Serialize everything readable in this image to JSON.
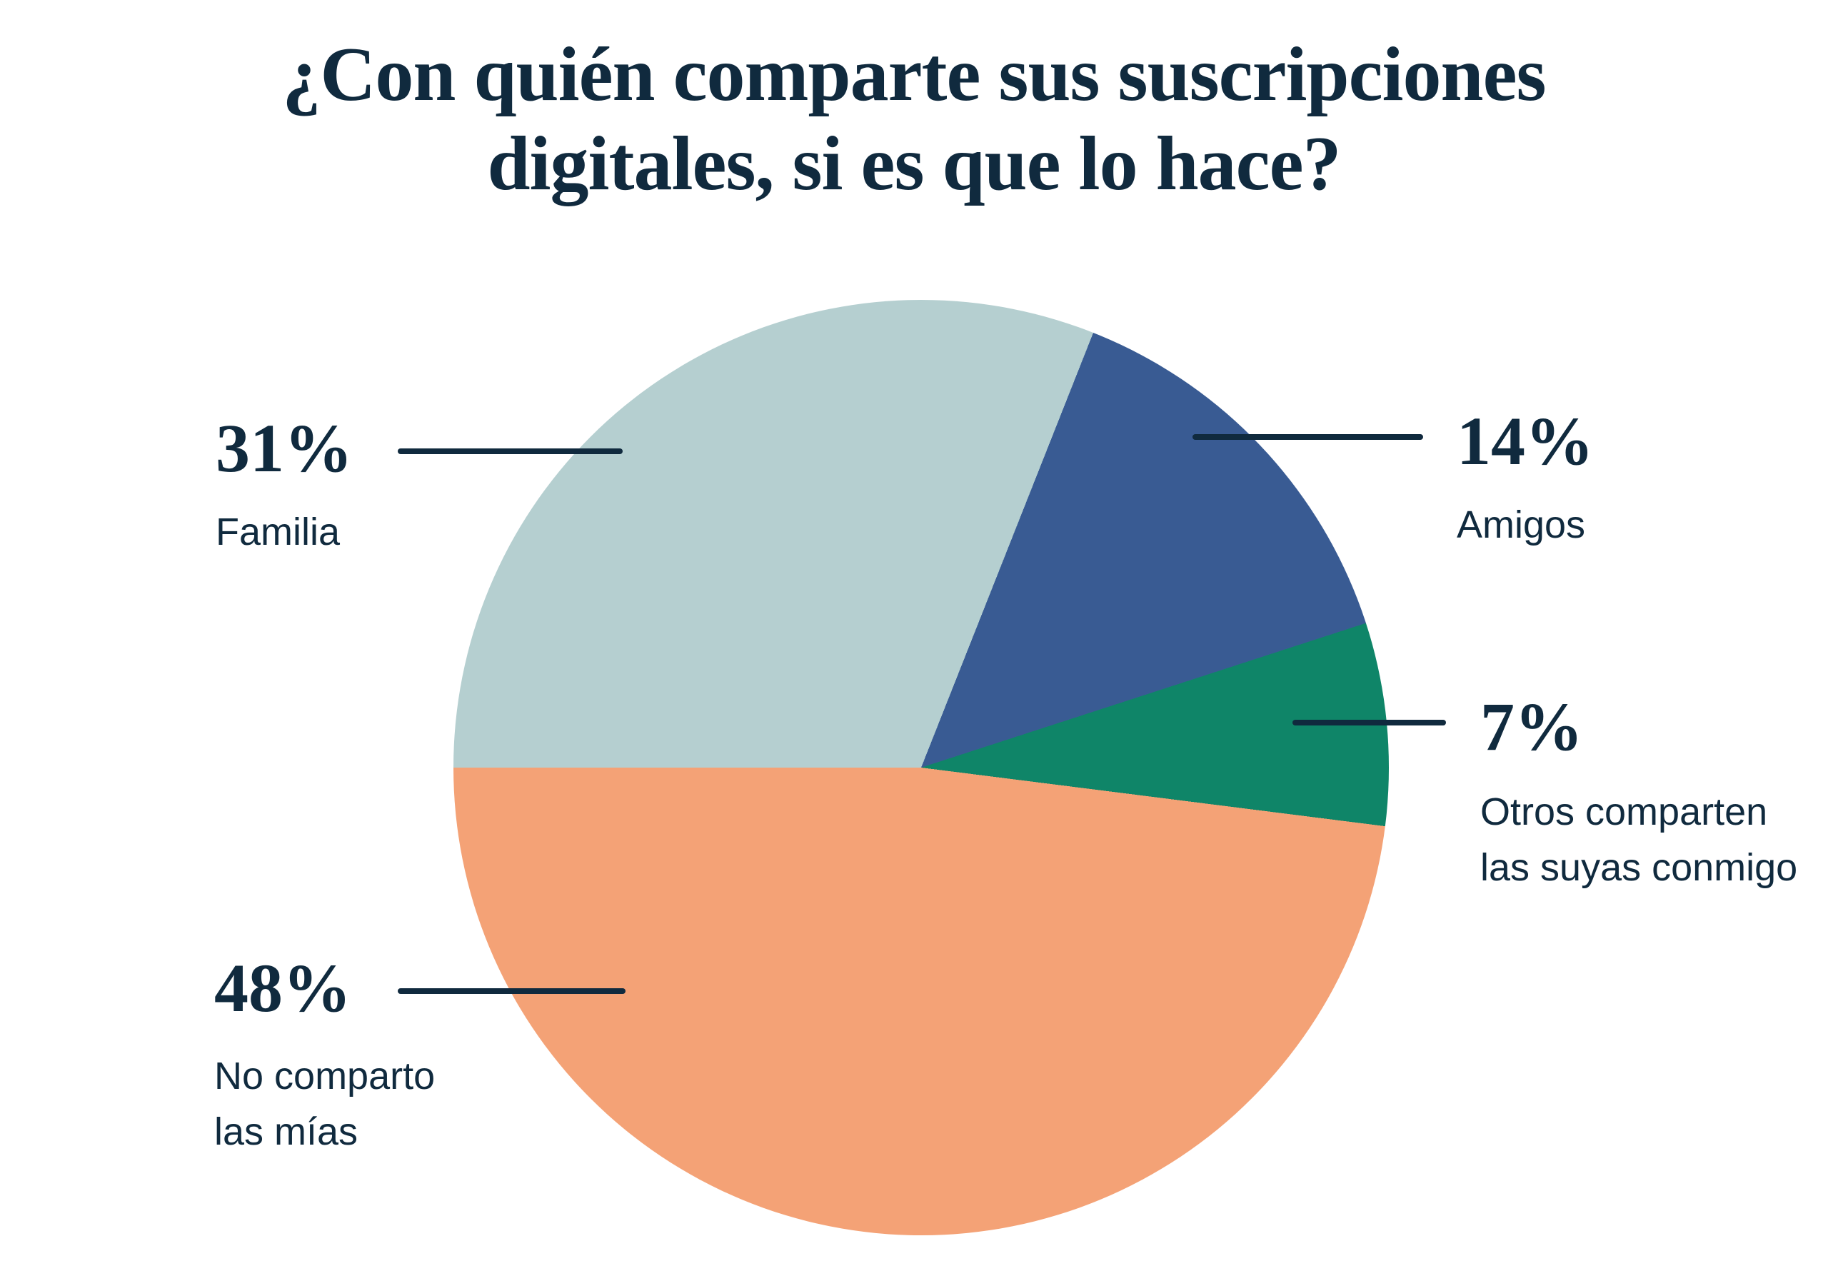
{
  "title": {
    "text": "¿Con quién comparte sus suscripciones digitales, si es que lo hace?",
    "display": "¿Con quién comparte sus suscripciones\ndigitales, si es que lo hace?"
  },
  "colors": {
    "text": "#102a3e",
    "callout_line": "#102a3e",
    "background": "#ffffff",
    "slice_familia": "#b5cfd0",
    "slice_amigos": "#395b93",
    "slice_otros": "#0f8568",
    "slice_no_comparto": "#f4a276"
  },
  "chart_data": {
    "type": "pie",
    "title": "¿Con quién comparte sus suscripciones digitales, si es que lo hace?",
    "start_angle_deg": 270,
    "direction": "clockwise",
    "grid": false,
    "legend_position": "callout-labels",
    "slices": [
      {
        "label": "Familia",
        "value": 31,
        "color": "#b5cfd0"
      },
      {
        "label": "Amigos",
        "value": 14,
        "color": "#395b93"
      },
      {
        "label": "Otros comparten las suyas conmigo",
        "value": 7,
        "color": "#0f8568"
      },
      {
        "label": "No comparto las mías",
        "value": 48,
        "color": "#f4a276"
      }
    ]
  },
  "callouts": [
    {
      "pct": "31%",
      "label": "Familia"
    },
    {
      "pct": "14%",
      "label": "Amigos"
    },
    {
      "pct": "7%",
      "label": "Otros comparten\nlas suyas conmigo"
    },
    {
      "pct": "48%",
      "label": "No comparto\nlas mías"
    }
  ]
}
